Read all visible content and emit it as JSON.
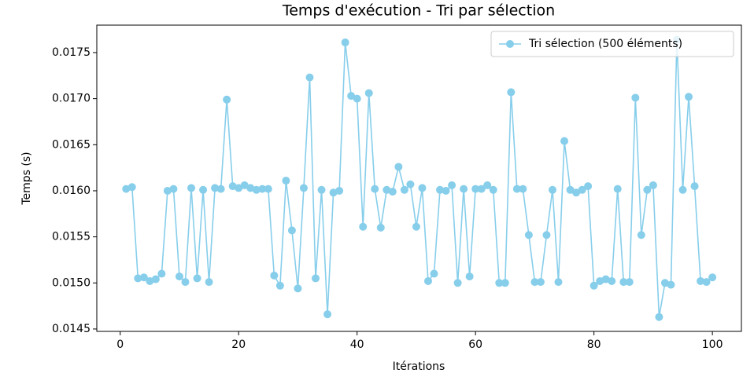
{
  "chart_data": {
    "type": "line",
    "title": "Temps d'exécution - Tri par sélection",
    "x_label": "Itérations",
    "y_label": "Temps (s)",
    "x": [
      1,
      2,
      3,
      4,
      5,
      6,
      7,
      8,
      9,
      10,
      11,
      12,
      13,
      14,
      15,
      16,
      17,
      18,
      19,
      20,
      21,
      22,
      23,
      24,
      25,
      26,
      27,
      28,
      29,
      30,
      31,
      32,
      33,
      34,
      35,
      36,
      37,
      38,
      39,
      40,
      41,
      42,
      43,
      44,
      45,
      46,
      47,
      48,
      49,
      50,
      51,
      52,
      53,
      54,
      55,
      56,
      57,
      58,
      59,
      60,
      61,
      62,
      63,
      64,
      65,
      66,
      67,
      68,
      69,
      70,
      71,
      72,
      73,
      74,
      75,
      76,
      77,
      78,
      79,
      80,
      81,
      82,
      83,
      84,
      85,
      86,
      87,
      88,
      89,
      90,
      91,
      92,
      93,
      94,
      95,
      96,
      97,
      98,
      99,
      100
    ],
    "series": [
      {
        "name": "Tri sélection (500 éléments)",
        "color": "#87ceeb",
        "values": [
          0.01602,
          0.01604,
          0.01505,
          0.01506,
          0.01502,
          0.01504,
          0.0151,
          0.016,
          0.01602,
          0.01507,
          0.01501,
          0.01603,
          0.01505,
          0.01601,
          0.01501,
          0.01603,
          0.01602,
          0.01699,
          0.01605,
          0.01603,
          0.01606,
          0.01603,
          0.01601,
          0.01602,
          0.01602,
          0.01508,
          0.01497,
          0.01611,
          0.01557,
          0.01494,
          0.01603,
          0.01723,
          0.01505,
          0.01601,
          0.01466,
          0.01598,
          0.016,
          0.01761,
          0.01703,
          0.017,
          0.01561,
          0.01706,
          0.01602,
          0.0156,
          0.01601,
          0.01599,
          0.01626,
          0.01601,
          0.01607,
          0.01561,
          0.01603,
          0.01502,
          0.0151,
          0.01601,
          0.016,
          0.01606,
          0.015,
          0.01602,
          0.01507,
          0.01602,
          0.01602,
          0.01606,
          0.01601,
          0.015,
          0.015,
          0.01707,
          0.01602,
          0.01602,
          0.01552,
          0.01501,
          0.01501,
          0.01552,
          0.01601,
          0.01501,
          0.01654,
          0.01601,
          0.01598,
          0.01601,
          0.01605,
          0.01497,
          0.01502,
          0.01504,
          0.01502,
          0.01602,
          0.01501,
          0.01501,
          0.01701,
          0.01552,
          0.01601,
          0.01606,
          0.01463,
          0.015,
          0.01498,
          0.01764,
          0.01601,
          0.01702,
          0.01605,
          0.01502,
          0.01501,
          0.01506
        ]
      }
    ],
    "xlim": [
      -3.95,
      104.9
    ],
    "ylim": [
      0.014474,
      0.017798
    ],
    "xticks": [
      0,
      20,
      40,
      60,
      80,
      100
    ],
    "yticks": [
      0.0145,
      {
        "value": 0.015,
        "label": "0.0150"
      },
      0.0155,
      {
        "value": 0.016,
        "label": "0.0160"
      },
      0.0165,
      {
        "value": 0.017,
        "label": "0.0170"
      },
      0.0175
    ],
    "legend": "upper right"
  }
}
